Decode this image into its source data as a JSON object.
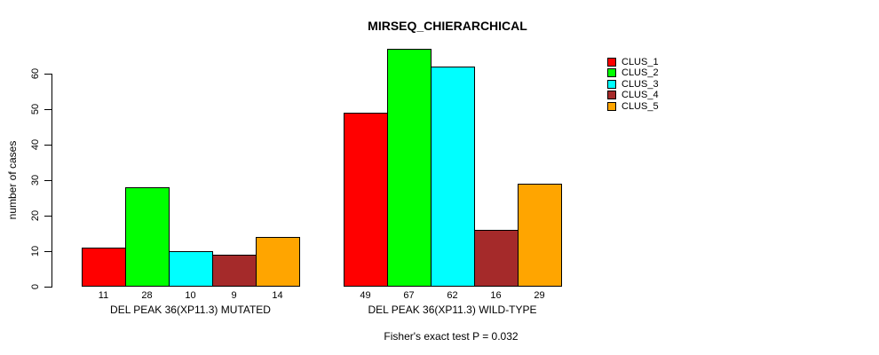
{
  "title": "MIRSEQ_CHIERARCHICAL",
  "chart_data": {
    "type": "bar",
    "title": "MIRSEQ_CHIERARCHICAL",
    "ylabel": "number of cases",
    "xlabel": "",
    "ylim": [
      0,
      67
    ],
    "yticks": [
      0,
      10,
      20,
      30,
      40,
      50,
      60
    ],
    "grid": false,
    "legend_position": "right",
    "bar_value_labels_shown": true,
    "categories": [
      "DEL PEAK 36(XP11.3) MUTATED",
      "DEL PEAK 36(XP11.3) WILD-TYPE"
    ],
    "series": [
      {
        "name": "CLUS_1",
        "color": "#FF0000",
        "values": [
          11,
          49
        ]
      },
      {
        "name": "CLUS_2",
        "color": "#00FF00",
        "values": [
          28,
          67
        ]
      },
      {
        "name": "CLUS_3",
        "color": "#00FFFF",
        "values": [
          10,
          62
        ]
      },
      {
        "name": "CLUS_4",
        "color": "#A52A2A",
        "values": [
          9,
          16
        ]
      },
      {
        "name": "CLUS_5",
        "color": "#FFA500",
        "values": [
          14,
          29
        ]
      }
    ],
    "footnote": "Fisher's exact test P = 0.032"
  }
}
